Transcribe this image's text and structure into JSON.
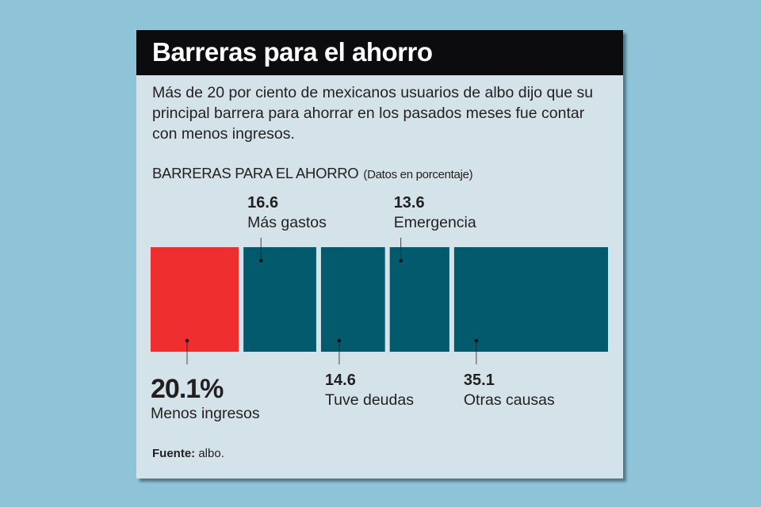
{
  "title": "Barreras para el ahorro",
  "description": "Más de 20 por ciento de mexicanos usuarios de albo dijo que su principal barrera para ahorrar en los pasados meses fue contar con menos ingresos.",
  "chart_data": {
    "type": "bar",
    "orientation": "stacked-horizontal (treemap-like proportional blocks)",
    "title": "BARRERAS PARA EL AHORRO",
    "subtitle": "(Datos en porcentaje)",
    "categories": [
      "Menos ingresos",
      "Más gastos",
      "Tuve deudas",
      "Emergencia",
      "Otras causas"
    ],
    "values": [
      20.1,
      16.6,
      14.6,
      13.6,
      35.1
    ],
    "value_labels": [
      "20.1%",
      "16.6",
      "14.6",
      "13.6",
      "35.1"
    ],
    "colors": [
      "#ee2e2f",
      "#035a6d",
      "#035a6d",
      "#035a6d",
      "#035a6d"
    ],
    "highlight": "Menos ingresos"
  },
  "source": {
    "label": "Fuente:",
    "value": "albo."
  },
  "colors": {
    "background": "#8fc3d8",
    "card": "#d4e3ea",
    "header": "#0c0c0e",
    "highlight": "#ee2e2f",
    "bar": "#035a6d"
  }
}
